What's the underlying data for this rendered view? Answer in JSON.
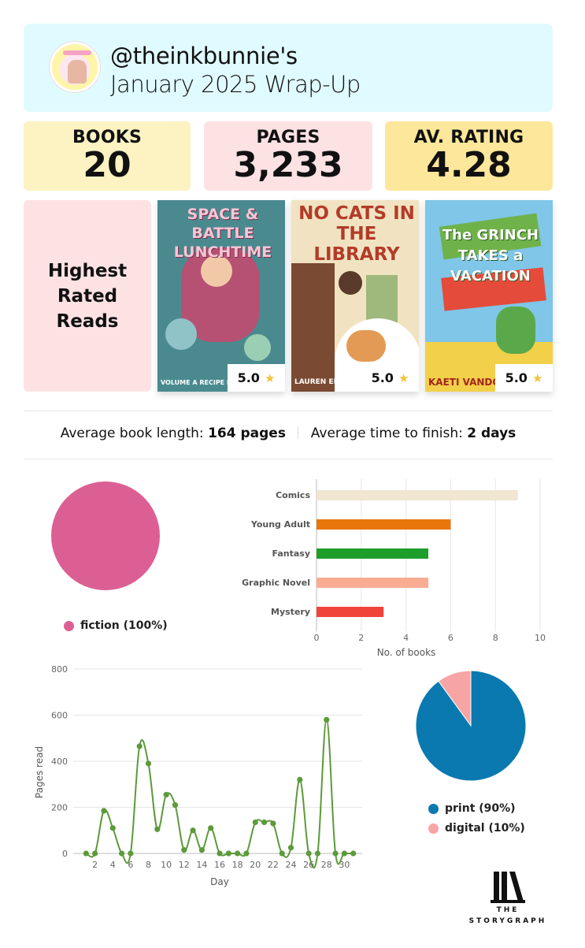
{
  "header": {
    "handle": "@theinkbunnie's",
    "subtitle": "January 2025 Wrap-Up"
  },
  "stats": [
    {
      "label": "BOOKS",
      "value": "20",
      "color": "#fdf2c2"
    },
    {
      "label": "PAGES",
      "value": "3,233",
      "color": "#fde2e4"
    },
    {
      "label": "AV. RATING",
      "value": "4.28",
      "color": "#fce79a"
    }
  ],
  "highest_rated": {
    "heading": "Highest Rated Reads",
    "books": [
      {
        "cover_title": "SPACE & BATTLE LUNCHTIME",
        "cover_author": "VOLUME A RECIPE FOR",
        "rating": "5.0"
      },
      {
        "cover_title": "NO CATS IN THE LIBRARY",
        "cover_author": "LAUREN EMMONS",
        "rating": "5.0"
      },
      {
        "cover_title": "The GRINCH TAKES a VACATION",
        "cover_author": "KAETI VANDORN",
        "rating": "5.0"
      }
    ]
  },
  "averages": {
    "length_label": "Average book length:",
    "length_value": "164 pages",
    "time_label": "Average time to finish:",
    "time_value": "2 days"
  },
  "chart_data": [
    {
      "type": "pie",
      "slices": [
        {
          "label": "fiction",
          "value": 100,
          "legend": "fiction (100%)",
          "color": "#dc5f94"
        }
      ]
    },
    {
      "type": "bar",
      "orientation": "horizontal",
      "categories": [
        "Comics",
        "Young Adult",
        "Fantasy",
        "Graphic Novel",
        "Mystery"
      ],
      "values": [
        9,
        6,
        5,
        5,
        3
      ],
      "colors": [
        "#f0e6d2",
        "#e8760c",
        "#1e9e2a",
        "#f9ac92",
        "#f0433a"
      ],
      "xlabel": "No. of books",
      "xlim": [
        0,
        10
      ],
      "xticks": [
        0,
        2,
        4,
        6,
        8,
        10
      ]
    },
    {
      "type": "line",
      "x": [
        1,
        2,
        3,
        4,
        5,
        6,
        7,
        8,
        9,
        10,
        11,
        12,
        13,
        14,
        15,
        16,
        17,
        18,
        19,
        20,
        21,
        22,
        23,
        24,
        25,
        26,
        27,
        28,
        29,
        30,
        31
      ],
      "y": [
        0,
        0,
        185,
        110,
        0,
        0,
        465,
        390,
        105,
        255,
        210,
        15,
        100,
        15,
        110,
        0,
        0,
        0,
        0,
        135,
        135,
        130,
        0,
        25,
        320,
        0,
        0,
        580,
        0,
        0,
        0
      ],
      "xlabel": "Day",
      "ylabel": "Pages read",
      "ylim": [
        0,
        800
      ],
      "yticks": [
        0,
        200,
        400,
        600,
        800
      ],
      "xticks": [
        2,
        4,
        6,
        8,
        10,
        12,
        14,
        16,
        18,
        20,
        22,
        24,
        26,
        28,
        30
      ],
      "color": "#5c9a3a"
    },
    {
      "type": "pie",
      "slices": [
        {
          "label": "print",
          "value": 90,
          "legend": "print (90%)",
          "color": "#0a79b0"
        },
        {
          "label": "digital",
          "value": 10,
          "legend": "digital (10%)",
          "color": "#f7a4a4"
        }
      ]
    }
  ],
  "logo": {
    "line1": "THE",
    "line2": "STORYGRAPH"
  }
}
